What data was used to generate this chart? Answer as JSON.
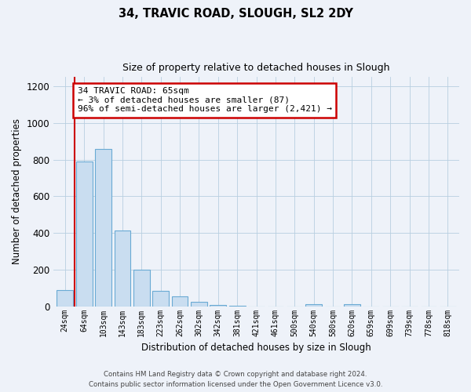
{
  "title1": "34, TRAVIC ROAD, SLOUGH, SL2 2DY",
  "title2": "Size of property relative to detached houses in Slough",
  "xlabel": "Distribution of detached houses by size in Slough",
  "ylabel": "Number of detached properties",
  "bar_labels": [
    "24sqm",
    "64sqm",
    "103sqm",
    "143sqm",
    "183sqm",
    "223sqm",
    "262sqm",
    "302sqm",
    "342sqm",
    "381sqm",
    "421sqm",
    "461sqm",
    "500sqm",
    "540sqm",
    "580sqm",
    "620sqm",
    "659sqm",
    "699sqm",
    "739sqm",
    "778sqm",
    "818sqm"
  ],
  "bar_heights": [
    87,
    790,
    860,
    415,
    200,
    85,
    52,
    22,
    8,
    3,
    0,
    0,
    0,
    10,
    0,
    10,
    0,
    0,
    0,
    0,
    0
  ],
  "bar_color": "#c9ddf0",
  "bar_edgecolor": "#6aaad4",
  "property_line_label": "34 TRAVIC ROAD: 65sqm",
  "annotation_line1": "← 3% of detached houses are smaller (87)",
  "annotation_line2": "96% of semi-detached houses are larger (2,421) →",
  "annotation_box_color": "#ffffff",
  "annotation_box_edgecolor": "#cc0000",
  "vline_color": "#cc0000",
  "ylim": [
    0,
    1250
  ],
  "yticks": [
    0,
    200,
    400,
    600,
    800,
    1000,
    1200
  ],
  "footer1": "Contains HM Land Registry data © Crown copyright and database right 2024.",
  "footer2": "Contains public sector information licensed under the Open Government Licence v3.0.",
  "bg_color": "#eef2f9"
}
